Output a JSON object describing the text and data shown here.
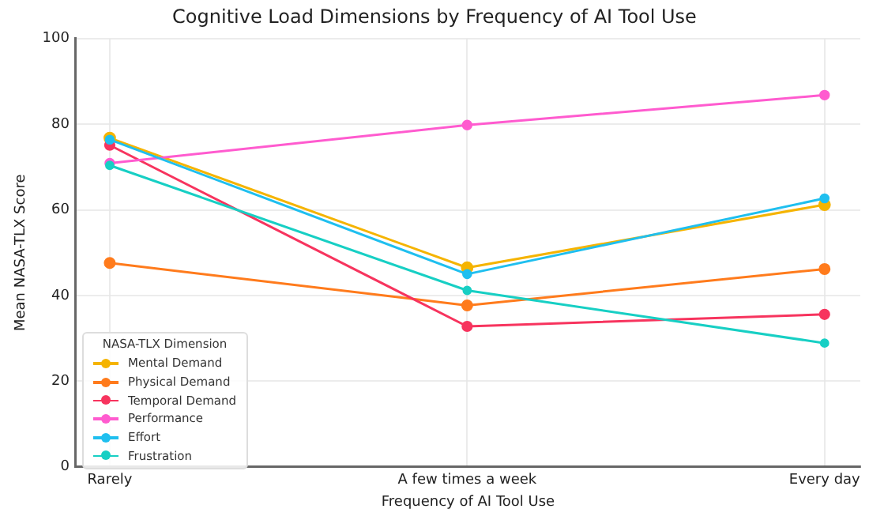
{
  "chart_data": {
    "type": "line",
    "title": "Cognitive Load Dimensions by Frequency of AI Tool Use",
    "xlabel": "Frequency of AI Tool Use",
    "ylabel": "Mean NASA-TLX Score",
    "legend_title": "NASA-TLX Dimension",
    "categories": [
      "Rarely",
      "A few times a week",
      "Every day"
    ],
    "series": [
      {
        "name": "Mental Demand",
        "color": "#f5b400",
        "values": [
          76.8,
          46.5,
          61.2
        ]
      },
      {
        "name": "Physical Demand",
        "color": "#ff7b1c",
        "values": [
          47.6,
          37.7,
          46.2
        ]
      },
      {
        "name": "Temporal Demand",
        "color": "#f7345e",
        "values": [
          75.1,
          32.8,
          35.6
        ]
      },
      {
        "name": "Performance",
        "color": "#ff5bcf",
        "values": [
          70.9,
          79.8,
          86.8
        ]
      },
      {
        "name": "Effort",
        "color": "#1fbfef",
        "values": [
          76.4,
          45.0,
          62.7
        ]
      },
      {
        "name": "Frustration",
        "color": "#17cfc4",
        "values": [
          70.4,
          41.2,
          28.9
        ]
      }
    ],
    "ylim": [
      0,
      100
    ],
    "yticks": [
      0,
      20,
      40,
      60,
      80,
      100
    ],
    "grid": true,
    "legend": "bottom left",
    "marker": "circle",
    "line_style": "solid"
  }
}
